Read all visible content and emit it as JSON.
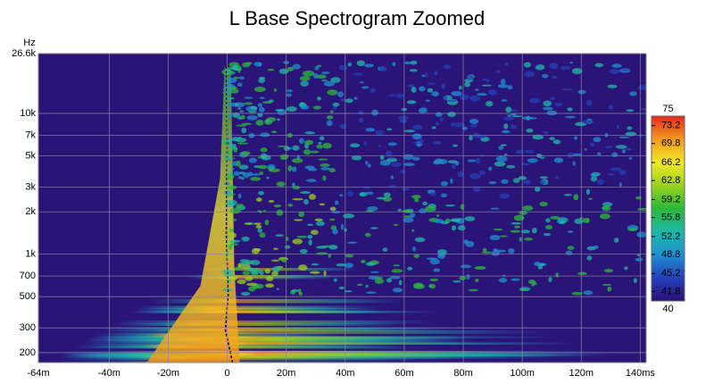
{
  "chart_data": {
    "type": "heatmap",
    "title": "L Base Spectrogram Zoomed",
    "y_unit": "Hz",
    "xlim": [
      -64,
      142
    ],
    "xticks": [
      {
        "value": -64,
        "label": "-64m"
      },
      {
        "value": -40,
        "label": "-40m"
      },
      {
        "value": -20,
        "label": "-20m"
      },
      0,
      {
        "value": 20,
        "label": "20m"
      },
      {
        "value": 40,
        "label": "40m"
      },
      {
        "value": 60,
        "label": "60m"
      },
      {
        "value": 80,
        "label": "80m"
      },
      {
        "value": 100,
        "label": "100m"
      },
      {
        "value": 120,
        "label": "120m"
      },
      {
        "value": 140,
        "label": "140ms"
      }
    ],
    "ylim": [
      170,
      26600
    ],
    "log_y": true,
    "yticks": [
      {
        "value": 200,
        "label": "200"
      },
      300,
      500,
      700,
      {
        "value": 1000,
        "label": "1k"
      },
      {
        "value": 2000,
        "label": "2k"
      },
      {
        "value": 3000,
        "label": "3k"
      },
      {
        "value": 5000,
        "label": "5k"
      },
      {
        "value": 7000,
        "label": "7k"
      },
      {
        "value": 10000,
        "label": "10k"
      },
      {
        "value": 26600,
        "label": "26.6k"
      }
    ],
    "grid": true,
    "colorbar": {
      "lim": [
        40,
        75
      ],
      "ticks": [
        73.2,
        69.8,
        66.2,
        62.8,
        59.2,
        55.8,
        52.2,
        48.8,
        45.2,
        41.8
      ],
      "colors": [
        "#2a0f78",
        "#2440b8",
        "#1f8fd0",
        "#1fb8a8",
        "#2ab83a",
        "#9ad21e",
        "#f2e82a",
        "#f29a1e",
        "#e8281e"
      ]
    }
  }
}
